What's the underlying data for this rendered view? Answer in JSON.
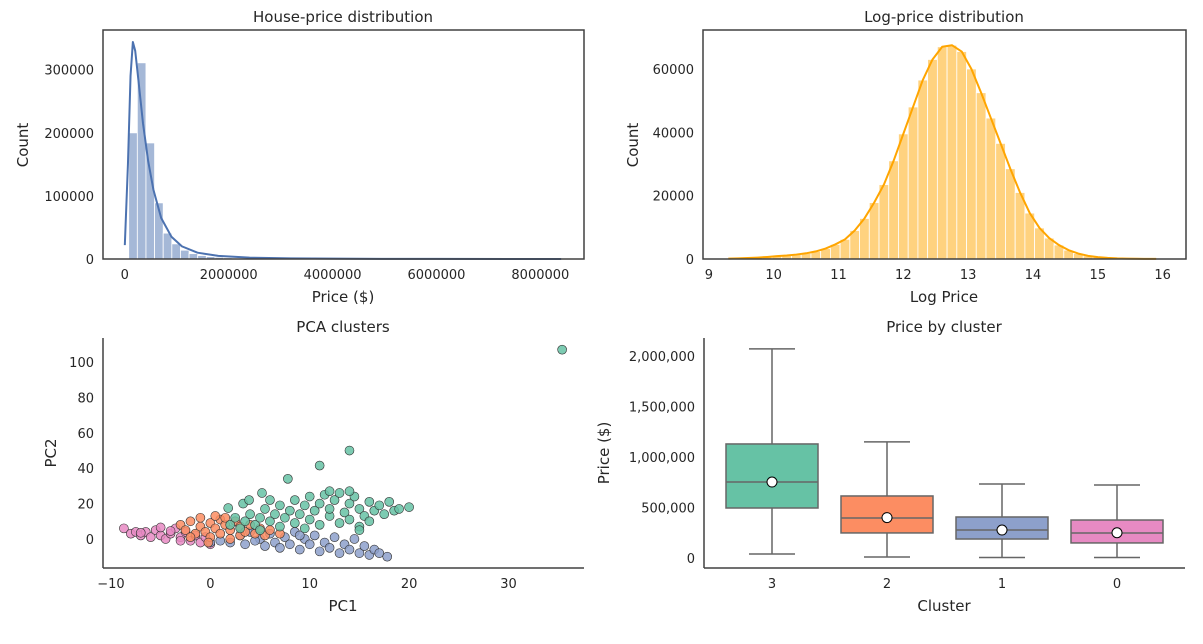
{
  "chart_data": [
    {
      "type": "bar",
      "title": "House-price distribution",
      "xlabel": "Price ($)",
      "ylabel": "Count",
      "xlim": [
        -420000,
        8840000
      ],
      "ylim": [
        0,
        363000
      ],
      "xticks": [
        0,
        2000000,
        4000000,
        6000000,
        8000000
      ],
      "xtick_labels": [
        "0",
        "2000000",
        "4000000",
        "6000000",
        "8000000"
      ],
      "yticks": [
        0,
        100000,
        200000,
        300000
      ],
      "ytick_labels": [
        "0",
        "100000",
        "200000",
        "300000"
      ],
      "bin_start": 75000,
      "bin_width": 166000,
      "counts": [
        200000,
        311000,
        184000,
        89000,
        41000,
        24000,
        14000,
        8500,
        5500,
        3800,
        2700,
        1900,
        1400,
        1000,
        750,
        550,
        400,
        300,
        230,
        180,
        140,
        110,
        90,
        70,
        55,
        45,
        35,
        30,
        25,
        20,
        15,
        12,
        10,
        8,
        6,
        5,
        4,
        3,
        3,
        2,
        2,
        2,
        1,
        1,
        1,
        1,
        1,
        1,
        1,
        1
      ],
      "bar_color": "#4c72b0",
      "kde": {
        "x": [
          0,
          60000,
          110000,
          155000,
          200000,
          260000,
          350000,
          450000,
          550000,
          700000,
          900000,
          1100000,
          1400000,
          1800000,
          2400000,
          3200000,
          4500000,
          6000000,
          8400000
        ],
        "y": [
          22000,
          150000,
          290000,
          344000,
          330000,
          285000,
          215000,
          155000,
          110000,
          65000,
          35000,
          20000,
          10000,
          5000,
          2200,
          900,
          300,
          100,
          20
        ]
      },
      "grid": false,
      "frame": "full"
    },
    {
      "type": "bar",
      "title": "Log-price distribution",
      "xlabel": "Log Price",
      "ylabel": "Count",
      "xlim": [
        8.91,
        16.36
      ],
      "ylim": [
        0,
        72300
      ],
      "xticks": [
        9,
        10,
        11,
        12,
        13,
        14,
        15,
        16
      ],
      "xtick_labels": [
        "9",
        "10",
        "11",
        "12",
        "13",
        "14",
        "15",
        "16"
      ],
      "yticks": [
        0,
        20000,
        40000,
        60000
      ],
      "ytick_labels": [
        "0",
        "20000",
        "40000",
        "60000"
      ],
      "bin_start": 9.225,
      "bin_width": 0.15,
      "counts": [
        100,
        180,
        300,
        450,
        650,
        900,
        1100,
        1400,
        1800,
        2400,
        3300,
        4600,
        6200,
        9000,
        12800,
        17800,
        23500,
        31000,
        39500,
        48000,
        56500,
        63000,
        67000,
        67500,
        65500,
        60000,
        52500,
        44500,
        36500,
        28500,
        21000,
        14500,
        9800,
        6600,
        4400,
        2800,
        1700,
        1000,
        600,
        350,
        200,
        120,
        70,
        40,
        20
      ],
      "bar_color": "#ffa500",
      "grid": false,
      "frame": "full"
    },
    {
      "type": "scatter",
      "title": "PCA clusters",
      "xlabel": "PC1",
      "ylabel": "PC2",
      "xlim": [
        -10.8,
        37.6
      ],
      "ylim": [
        -16.4,
        113.6
      ],
      "xticks": [
        -10,
        0,
        10,
        20,
        30
      ],
      "xtick_labels": [
        "−10",
        "0",
        "10",
        "20",
        "30"
      ],
      "yticks": [
        0,
        20,
        40,
        60,
        80,
        100
      ],
      "ytick_labels": [
        "0",
        "20",
        "40",
        "60",
        "80",
        "100"
      ],
      "series": [
        {
          "cluster": 0,
          "color": "#e78ac3",
          "points": [
            [
              -8.7,
              6
            ],
            [
              -8,
              3
            ],
            [
              -7.5,
              4
            ],
            [
              -7,
              2
            ],
            [
              -6.5,
              4
            ],
            [
              -6,
              1
            ],
            [
              -5.5,
              5
            ],
            [
              -5,
              2
            ],
            [
              -4.5,
              0
            ],
            [
              -4,
              3
            ],
            [
              -3.5,
              6
            ],
            [
              -3,
              1
            ],
            [
              -2.5,
              4
            ],
            [
              -2,
              -1
            ],
            [
              -1.5,
              2
            ],
            [
              -1,
              -2
            ],
            [
              -0.5,
              1
            ],
            [
              0,
              -3
            ],
            [
              -5,
              6.5
            ],
            [
              -3,
              -1
            ],
            [
              -7,
              3.5
            ],
            [
              -4,
              4.5
            ]
          ]
        },
        {
          "cluster": 1,
          "color": "#8da0cb",
          "points": [
            [
              0,
              -2
            ],
            [
              1,
              -1
            ],
            [
              2,
              -2
            ],
            [
              3,
              2
            ],
            [
              3.5,
              -3
            ],
            [
              4,
              4
            ],
            [
              5,
              0
            ],
            [
              5.5,
              -4
            ],
            [
              6,
              3
            ],
            [
              6.5,
              -2
            ],
            [
              7,
              -5
            ],
            [
              7.5,
              1
            ],
            [
              8,
              -3
            ],
            [
              8.5,
              4
            ],
            [
              9,
              -6
            ],
            [
              9.5,
              0
            ],
            [
              10,
              -3
            ],
            [
              10.5,
              2
            ],
            [
              11,
              -7
            ],
            [
              11.5,
              -2
            ],
            [
              12,
              -5
            ],
            [
              12.5,
              1
            ],
            [
              13,
              -8
            ],
            [
              13.5,
              -3
            ],
            [
              14,
              -6
            ],
            [
              14.5,
              0
            ],
            [
              15,
              -8
            ],
            [
              15.5,
              -4
            ],
            [
              16,
              -9
            ],
            [
              16.5,
              -6
            ],
            [
              17,
              -8
            ],
            [
              17.8,
              -10
            ],
            [
              4.5,
              -1
            ],
            [
              9,
              2
            ]
          ]
        },
        {
          "cluster": 2,
          "color": "#fc8d62",
          "points": [
            [
              -3,
              8
            ],
            [
              -2.5,
              5
            ],
            [
              -2,
              10
            ],
            [
              -1.5,
              3
            ],
            [
              -1,
              7
            ],
            [
              -1,
              12
            ],
            [
              -0.5,
              4
            ],
            [
              0,
              9
            ],
            [
              0,
              1
            ],
            [
              0.5,
              6
            ],
            [
              1,
              11
            ],
            [
              1,
              3
            ],
            [
              1.5,
              8
            ],
            [
              2,
              5
            ],
            [
              2.5,
              10
            ],
            [
              3,
              2
            ],
            [
              3,
              7
            ],
            [
              3.5,
              4
            ],
            [
              4,
              8
            ],
            [
              4.5,
              3
            ],
            [
              5,
              6
            ],
            [
              5.5,
              2
            ],
            [
              6,
              5
            ],
            [
              7,
              3
            ],
            [
              -0.2,
              -2
            ],
            [
              1.5,
              12
            ],
            [
              0.5,
              13
            ],
            [
              -2,
              1
            ],
            [
              2,
              0
            ]
          ]
        },
        {
          "cluster": 3,
          "color": "#66c2a5",
          "points": [
            [
              2,
              8
            ],
            [
              2.5,
              12
            ],
            [
              3,
              6
            ],
            [
              3.5,
              10
            ],
            [
              4,
              14
            ],
            [
              4.5,
              8
            ],
            [
              5,
              12
            ],
            [
              5,
              5
            ],
            [
              5.5,
              17
            ],
            [
              6,
              10
            ],
            [
              6.5,
              14
            ],
            [
              7,
              7
            ],
            [
              7,
              19
            ],
            [
              7.5,
              12
            ],
            [
              8,
              16
            ],
            [
              8.5,
              9
            ],
            [
              8.5,
              22
            ],
            [
              9,
              14
            ],
            [
              9.5,
              19
            ],
            [
              9.5,
              6
            ],
            [
              10,
              24
            ],
            [
              10,
              11
            ],
            [
              10.5,
              16
            ],
            [
              11,
              20
            ],
            [
              11,
              8
            ],
            [
              11.5,
              25
            ],
            [
              12,
              13
            ],
            [
              12,
              17
            ],
            [
              12.5,
              22
            ],
            [
              13,
              9
            ],
            [
              13,
              26
            ],
            [
              13.5,
              15
            ],
            [
              14,
              20
            ],
            [
              14,
              11
            ],
            [
              14.5,
              24
            ],
            [
              15,
              17
            ],
            [
              15,
              7
            ],
            [
              15.5,
              13
            ],
            [
              16,
              21
            ],
            [
              16,
              10
            ],
            [
              16.5,
              16
            ],
            [
              17,
              19
            ],
            [
              17.5,
              14
            ],
            [
              18,
              21
            ],
            [
              18.5,
              16
            ],
            [
              19,
              17
            ],
            [
              20,
              18
            ],
            [
              15,
              5
            ],
            [
              14,
              27
            ],
            [
              12,
              27
            ],
            [
              6,
              22
            ],
            [
              1.8,
              17.5
            ],
            [
              3.3,
              20
            ],
            [
              3.9,
              22
            ],
            [
              5.2,
              26
            ],
            [
              7.8,
              34
            ],
            [
              11,
              41.5
            ],
            [
              14,
              50
            ],
            [
              35.4,
              107
            ]
          ]
        }
      ],
      "grid": false,
      "frame": "left-bottom"
    },
    {
      "type": "box",
      "title": "Price by cluster",
      "xlabel": "Cluster",
      "ylabel": "Price ($)",
      "ylim": [
        -99000,
        2178000
      ],
      "yticks": [
        0,
        500000,
        1000000,
        1500000,
        2000000
      ],
      "ytick_labels": [
        "0",
        "500,000",
        "1,000,000",
        "1,500,000",
        "2,000,000"
      ],
      "categories": [
        "3",
        "2",
        "1",
        "0"
      ],
      "boxes": [
        {
          "cluster": "3",
          "whisker_low": 40000,
          "q1": 495000,
          "median": 752000,
          "q3": 1129000,
          "whisker_high": 2070000,
          "mean": 752000,
          "color": "#66c2a5"
        },
        {
          "cluster": "2",
          "whisker_low": 10000,
          "q1": 248000,
          "median": 396000,
          "q3": 614000,
          "whisker_high": 1150000,
          "mean": 400000,
          "color": "#fc8d62"
        },
        {
          "cluster": "1",
          "whisker_low": 5000,
          "q1": 188000,
          "median": 277000,
          "q3": 406000,
          "whisker_high": 733000,
          "mean": 277000,
          "color": "#8da0cb"
        },
        {
          "cluster": "0",
          "whisker_low": 5000,
          "q1": 149000,
          "median": 248000,
          "q3": 376000,
          "whisker_high": 723000,
          "mean": 250000,
          "color": "#e78ac3"
        }
      ],
      "grid": false,
      "frame": "left-bottom"
    }
  ]
}
